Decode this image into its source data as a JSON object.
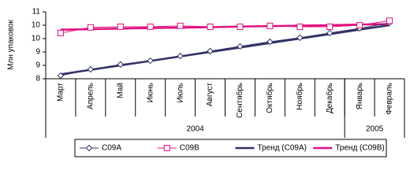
{
  "chart_data": {
    "type": "line",
    "y_label": "Млн упаковок",
    "categories": [
      "Март",
      "Апрель",
      "Май",
      "Июнь",
      "Июль",
      "Август",
      "Сентябрь",
      "Октябрь",
      "Ноябрь",
      "Декабрь",
      "Январь",
      "Февраль"
    ],
    "year_groups": [
      {
        "label": "2004",
        "count": 10
      },
      {
        "label": "2005",
        "count": 2
      }
    ],
    "ylim": [
      8,
      11
    ],
    "yticks": [
      8,
      {
        "value": 8.6,
        "label": "9"
      },
      {
        "value": 9.2,
        "label": "9"
      },
      {
        "value": 9.8,
        "label": "10"
      },
      {
        "value": 10.4,
        "label": "10"
      },
      11
    ],
    "series": [
      {
        "name": "C09A",
        "color": "#333366",
        "marker": "diamond",
        "width": 1,
        "values": [
          8.14,
          8.42,
          8.64,
          8.81,
          9.02,
          9.24,
          9.45,
          9.66,
          9.84,
          10.05,
          10.26,
          10.5
        ]
      },
      {
        "name": "C09B",
        "color": "#e0117f",
        "marker": "square",
        "width": 1,
        "values": [
          10.05,
          10.3,
          10.33,
          10.33,
          10.37,
          10.33,
          10.33,
          10.37,
          10.33,
          10.33,
          10.4,
          10.6
        ]
      },
      {
        "name": "Тренд (C09A)",
        "color": "#333366",
        "marker": "none",
        "width": 2.5,
        "values": [
          8.2,
          8.4,
          8.6,
          8.8,
          9.0,
          9.2,
          9.4,
          9.6,
          9.8,
          10.0,
          10.2,
          10.4
        ]
      },
      {
        "name": "Тренд (C09B)",
        "color": "#e0117f",
        "marker": "none",
        "width": 2.5,
        "values": [
          10.2,
          10.22,
          10.25,
          10.27,
          10.29,
          10.31,
          10.34,
          10.36,
          10.38,
          10.4,
          10.43,
          10.45
        ]
      }
    ]
  }
}
